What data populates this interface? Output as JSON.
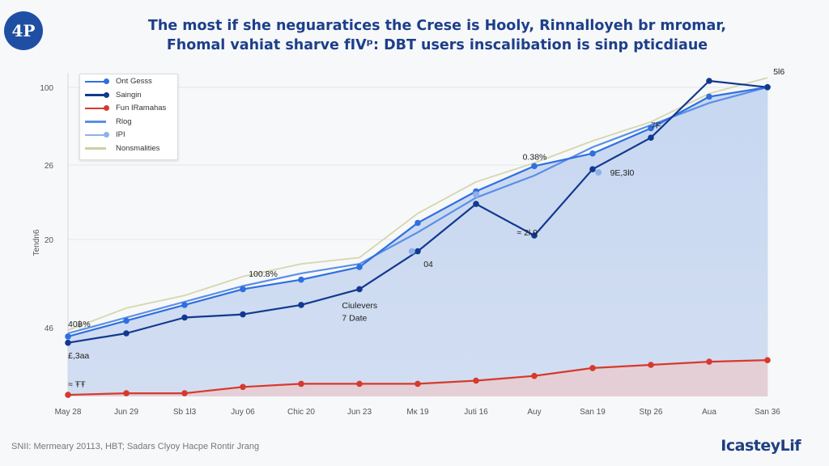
{
  "header": {
    "logo_text": "4P",
    "title_line1": "The most if she neguaratices the Crese is Hooly, Rinnalloyeh br mromar,",
    "title_line2": "Fhomal vahiat sharve fIVᵖ: DBT users inscalibation is sinp pticdiaue"
  },
  "footer": {
    "source_note": "SNII: Mermeary 20113, HBT; Sadars Clyoy Hacpe Rontir Jrang",
    "brand": "IcasteyLif"
  },
  "chart_data": {
    "type": "line",
    "title": "The most if she neguaratices the Crese is Hooly, Rinnalloyeh br mromar, Fhomal vahiat sharve fIV: DBT users inscalibation is sinp pticdiaue",
    "xlabel": "",
    "ylabel": "Tendn6",
    "y_tick_labels": [
      "46",
      "20",
      "26",
      "100"
    ],
    "ylim": [
      0,
      100
    ],
    "grid": true,
    "legend_position": "top-left",
    "categories": [
      "May 28",
      "Jun 29",
      "Sb 1l3",
      "Juy 06",
      "Chic 20",
      "Jun 23",
      "Mĸ 19",
      "Juti 16",
      "Auy",
      "San 19",
      "Stp 26",
      "Aua",
      "San 36"
    ],
    "x_positions": [
      0,
      1,
      2,
      3,
      4,
      5,
      6,
      7,
      8,
      9,
      10,
      11,
      12
    ],
    "series": [
      {
        "name": "Ont Gesss",
        "color": "#2f6fe0",
        "marker": true,
        "x": [
          0,
          1,
          2,
          3,
          4,
          5,
          6,
          7,
          8,
          9,
          10,
          11,
          12
        ],
        "values": [
          19,
          24,
          29,
          34,
          37,
          41,
          55,
          65,
          73,
          77,
          85,
          95,
          98
        ]
      },
      {
        "name": "Saingin",
        "color": "#12398f",
        "marker": true,
        "x": [
          0,
          1,
          2,
          3,
          4,
          5,
          6,
          7,
          8,
          9,
          10,
          11,
          12
        ],
        "values": [
          17,
          20,
          25,
          26,
          29,
          34,
          46,
          61,
          51,
          72,
          82,
          100,
          98
        ]
      },
      {
        "name": "Fun IRamahas",
        "color": "#d63a2c",
        "marker": true,
        "x": [
          0,
          1,
          2,
          3,
          4,
          5,
          6,
          7,
          8,
          9,
          10,
          11,
          12
        ],
        "values": [
          0.5,
          1,
          1,
          3,
          4,
          4,
          4,
          5,
          6.5,
          9,
          10,
          11,
          11.5
        ]
      },
      {
        "name": "Rlog",
        "color": "#5b8fe6",
        "marker": false,
        "x": [
          0,
          1,
          2,
          3,
          4,
          5,
          6,
          7,
          8,
          9,
          10,
          11,
          12
        ],
        "values": [
          20,
          25,
          30,
          35,
          39,
          42,
          52,
          63,
          70,
          79,
          86,
          93,
          98
        ]
      },
      {
        "name": "IPI",
        "color": "#8fb0ea",
        "marker": true,
        "x": [
          5.9,
          7,
          9.1
        ],
        "values": [
          46,
          64,
          71
        ]
      },
      {
        "name": "Nonsmalities",
        "color": "#cfd0a0",
        "marker": false,
        "x": [
          0,
          1,
          2,
          3,
          4,
          5,
          6,
          7,
          8,
          9,
          10,
          11,
          12
        ],
        "values": [
          21,
          28,
          32,
          38,
          42,
          44,
          58,
          68,
          74,
          81,
          87,
          96,
          101
        ]
      }
    ],
    "annotations": [
      {
        "text": "40฿%",
        "x": 0,
        "y": 22
      },
      {
        "text": "£,3аа",
        "x": 0,
        "y": 12
      },
      {
        "text": "≈ ŦŦ",
        "x": 0,
        "y": 3
      },
      {
        "text": "100.8%",
        "x": 3.1,
        "y": 38
      },
      {
        "text": "Ciulevers",
        "x": 4.7,
        "y": 28
      },
      {
        "text": "7 Date",
        "x": 4.7,
        "y": 24
      },
      {
        "text": "04",
        "x": 6.1,
        "y": 41
      },
      {
        "text": "0.38%",
        "x": 7.8,
        "y": 75
      },
      {
        "text": "≈ 2l.9",
        "x": 7.7,
        "y": 51
      },
      {
        "text": "9E,3l0",
        "x": 9.3,
        "y": 70
      },
      {
        "text": "7F",
        "x": 10,
        "y": 85
      },
      {
        "text": "5l6",
        "x": 12.1,
        "y": 102
      }
    ]
  }
}
